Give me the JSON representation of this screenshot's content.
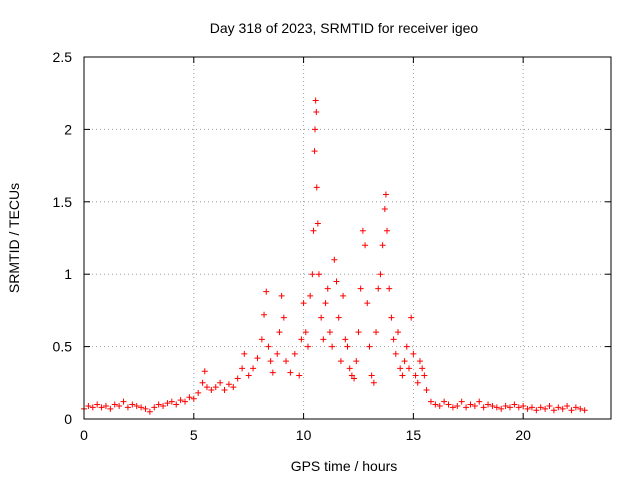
{
  "chart_data": {
    "type": "scatter",
    "title": "Day 318 of 2023, SRMTID for receiver igeo",
    "xlabel": "GPS time / hours",
    "ylabel": "SRMTID / TECUs",
    "xlim": [
      0,
      24
    ],
    "ylim": [
      0,
      2.5
    ],
    "xticks": [
      0,
      5,
      10,
      15,
      20
    ],
    "xtick_labels": [
      "0",
      "5",
      "10",
      "15",
      "20"
    ],
    "yticks": [
      0,
      0.5,
      1,
      1.5,
      2,
      2.5
    ],
    "ytick_labels": [
      "0",
      "0.5",
      "1",
      "1.5",
      "2",
      "2.5"
    ],
    "grid": true,
    "marker": "plus",
    "color": "#ff0000",
    "series": [
      {
        "name": "SRMTID",
        "points": [
          [
            0.0,
            0.07
          ],
          [
            0.2,
            0.09
          ],
          [
            0.4,
            0.08
          ],
          [
            0.6,
            0.1
          ],
          [
            0.8,
            0.08
          ],
          [
            1.0,
            0.09
          ],
          [
            1.2,
            0.07
          ],
          [
            1.4,
            0.1
          ],
          [
            1.6,
            0.09
          ],
          [
            1.8,
            0.12
          ],
          [
            2.0,
            0.08
          ],
          [
            2.2,
            0.1
          ],
          [
            2.4,
            0.09
          ],
          [
            2.6,
            0.08
          ],
          [
            2.8,
            0.07
          ],
          [
            3.0,
            0.05
          ],
          [
            3.2,
            0.08
          ],
          [
            3.4,
            0.1
          ],
          [
            3.6,
            0.09
          ],
          [
            3.8,
            0.11
          ],
          [
            4.0,
            0.12
          ],
          [
            4.2,
            0.1
          ],
          [
            4.4,
            0.13
          ],
          [
            4.6,
            0.12
          ],
          [
            4.8,
            0.15
          ],
          [
            5.0,
            0.14
          ],
          [
            5.2,
            0.18
          ],
          [
            5.4,
            0.25
          ],
          [
            5.5,
            0.33
          ],
          [
            5.6,
            0.22
          ],
          [
            5.8,
            0.2
          ],
          [
            6.0,
            0.22
          ],
          [
            6.2,
            0.25
          ],
          [
            6.4,
            0.2
          ],
          [
            6.6,
            0.24
          ],
          [
            6.8,
            0.22
          ],
          [
            7.0,
            0.28
          ],
          [
            7.2,
            0.35
          ],
          [
            7.3,
            0.45
          ],
          [
            7.5,
            0.3
          ],
          [
            7.7,
            0.35
          ],
          [
            7.9,
            0.42
          ],
          [
            8.1,
            0.55
          ],
          [
            8.2,
            0.72
          ],
          [
            8.3,
            0.88
          ],
          [
            8.4,
            0.5
          ],
          [
            8.5,
            0.4
          ],
          [
            8.6,
            0.32
          ],
          [
            8.8,
            0.45
          ],
          [
            8.9,
            0.6
          ],
          [
            9.0,
            0.85
          ],
          [
            9.1,
            0.7
          ],
          [
            9.2,
            0.4
          ],
          [
            9.4,
            0.32
          ],
          [
            9.6,
            0.45
          ],
          [
            9.8,
            0.3
          ],
          [
            9.9,
            0.55
          ],
          [
            10.0,
            0.8
          ],
          [
            10.1,
            0.6
          ],
          [
            10.2,
            0.5
          ],
          [
            10.3,
            0.85
          ],
          [
            10.4,
            1.0
          ],
          [
            10.45,
            1.3
          ],
          [
            10.5,
            1.85
          ],
          [
            10.52,
            2.0
          ],
          [
            10.55,
            2.2
          ],
          [
            10.58,
            2.12
          ],
          [
            10.6,
            1.6
          ],
          [
            10.65,
            1.35
          ],
          [
            10.7,
            1.0
          ],
          [
            10.8,
            0.7
          ],
          [
            10.9,
            0.55
          ],
          [
            11.0,
            0.8
          ],
          [
            11.1,
            0.9
          ],
          [
            11.2,
            0.6
          ],
          [
            11.3,
            0.5
          ],
          [
            11.4,
            1.1
          ],
          [
            11.5,
            0.95
          ],
          [
            11.6,
            0.7
          ],
          [
            11.7,
            0.4
          ],
          [
            11.8,
            0.85
          ],
          [
            11.9,
            0.55
          ],
          [
            12.0,
            0.5
          ],
          [
            12.1,
            0.35
          ],
          [
            12.2,
            0.3
          ],
          [
            12.3,
            0.28
          ],
          [
            12.4,
            0.4
          ],
          [
            12.5,
            0.6
          ],
          [
            12.6,
            0.9
          ],
          [
            12.7,
            1.3
          ],
          [
            12.8,
            1.2
          ],
          [
            12.9,
            0.8
          ],
          [
            13.0,
            0.5
          ],
          [
            13.1,
            0.3
          ],
          [
            13.2,
            0.25
          ],
          [
            13.3,
            0.6
          ],
          [
            13.4,
            0.9
          ],
          [
            13.5,
            1.0
          ],
          [
            13.6,
            1.2
          ],
          [
            13.7,
            1.45
          ],
          [
            13.75,
            1.55
          ],
          [
            13.8,
            1.3
          ],
          [
            13.9,
            0.9
          ],
          [
            14.0,
            0.7
          ],
          [
            14.1,
            0.55
          ],
          [
            14.2,
            0.45
          ],
          [
            14.3,
            0.6
          ],
          [
            14.4,
            0.35
          ],
          [
            14.5,
            0.3
          ],
          [
            14.6,
            0.4
          ],
          [
            14.7,
            0.5
          ],
          [
            14.8,
            0.35
          ],
          [
            14.9,
            0.7
          ],
          [
            15.0,
            0.45
          ],
          [
            15.1,
            0.3
          ],
          [
            15.2,
            0.25
          ],
          [
            15.3,
            0.4
          ],
          [
            15.4,
            0.35
          ],
          [
            15.5,
            0.3
          ],
          [
            15.6,
            0.2
          ],
          [
            15.8,
            0.12
          ],
          [
            16.0,
            0.1
          ],
          [
            16.2,
            0.09
          ],
          [
            16.4,
            0.12
          ],
          [
            16.6,
            0.1
          ],
          [
            16.8,
            0.08
          ],
          [
            17.0,
            0.09
          ],
          [
            17.2,
            0.12
          ],
          [
            17.4,
            0.08
          ],
          [
            17.6,
            0.1
          ],
          [
            17.8,
            0.09
          ],
          [
            18.0,
            0.12
          ],
          [
            18.2,
            0.08
          ],
          [
            18.4,
            0.1
          ],
          [
            18.6,
            0.09
          ],
          [
            18.8,
            0.08
          ],
          [
            19.0,
            0.07
          ],
          [
            19.2,
            0.09
          ],
          [
            19.4,
            0.08
          ],
          [
            19.6,
            0.1
          ],
          [
            19.8,
            0.08
          ],
          [
            20.0,
            0.09
          ],
          [
            20.2,
            0.07
          ],
          [
            20.4,
            0.08
          ],
          [
            20.6,
            0.06
          ],
          [
            20.8,
            0.08
          ],
          [
            21.0,
            0.07
          ],
          [
            21.2,
            0.09
          ],
          [
            21.4,
            0.06
          ],
          [
            21.6,
            0.08
          ],
          [
            21.8,
            0.07
          ],
          [
            22.0,
            0.09
          ],
          [
            22.2,
            0.06
          ],
          [
            22.4,
            0.08
          ],
          [
            22.6,
            0.07
          ],
          [
            22.8,
            0.06
          ]
        ]
      }
    ]
  }
}
